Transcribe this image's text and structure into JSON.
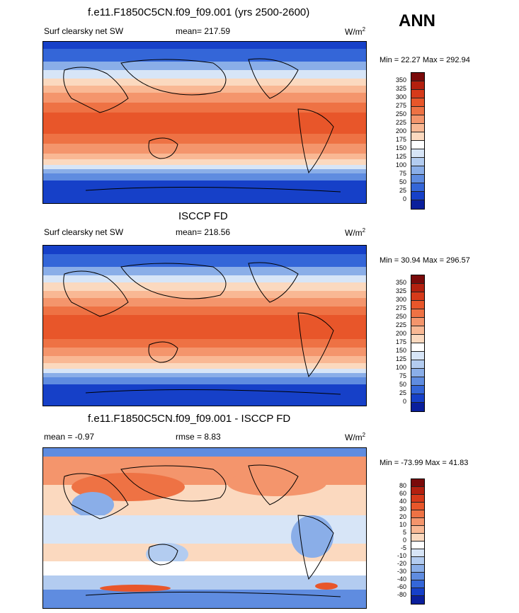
{
  "season": "ANN",
  "panels": [
    {
      "title": "f.e11.F1850C5CN.f09_f09.001 (yrs 2500-2600)",
      "variable": "Surf clearsky net SW",
      "stat": "mean= 217.59",
      "units": "W/m",
      "units_sup": "2",
      "minmax": "Min =  22.27 Max = 292.94",
      "levels": [
        "350",
        "325",
        "300",
        "275",
        "250",
        "225",
        "200",
        "175",
        "150",
        "125",
        "100",
        "75",
        "50",
        "25",
        "0"
      ],
      "colors": [
        "#7a0a0a",
        "#b3200f",
        "#d63a1a",
        "#e8562a",
        "#ee7244",
        "#f4956c",
        "#f9b894",
        "#fbd9bf",
        "#ffffff",
        "#d7e5f7",
        "#b3ccf0",
        "#8aaee8",
        "#5f8ce0",
        "#3466d8",
        "#1640c8",
        "#0a1f9c"
      ]
    },
    {
      "title": "ISCCP FD",
      "variable": "Surf clearsky net SW",
      "stat": "mean= 218.56",
      "units": "W/m",
      "units_sup": "2",
      "minmax": "Min =  30.94 Max = 296.57",
      "levels": [
        "350",
        "325",
        "300",
        "275",
        "250",
        "225",
        "200",
        "175",
        "150",
        "125",
        "100",
        "75",
        "50",
        "25",
        "0"
      ],
      "colors": [
        "#7a0a0a",
        "#b3200f",
        "#d63a1a",
        "#e8562a",
        "#ee7244",
        "#f4956c",
        "#f9b894",
        "#fbd9bf",
        "#ffffff",
        "#d7e5f7",
        "#b3ccf0",
        "#8aaee8",
        "#5f8ce0",
        "#3466d8",
        "#1640c8",
        "#0a1f9c"
      ]
    },
    {
      "title": "f.e11.F1850C5CN.f09_f09.001 - ISCCP FD",
      "variable": "mean =  -0.97",
      "stat": "rmse =   8.83",
      "units": "W/m",
      "units_sup": "2",
      "minmax": "Min = -73.99 Max =  41.83",
      "levels": [
        "80",
        "60",
        "40",
        "30",
        "20",
        "10",
        "5",
        "0",
        "-5",
        "-10",
        "-20",
        "-30",
        "-40",
        "-60",
        "-80"
      ],
      "colors": [
        "#7a0a0a",
        "#b3200f",
        "#d63a1a",
        "#e8562a",
        "#ee7244",
        "#f4956c",
        "#f9b894",
        "#fbd9bf",
        "#ffffff",
        "#d7e5f7",
        "#b3ccf0",
        "#8aaee8",
        "#5f8ce0",
        "#3466d8",
        "#1640c8",
        "#0a1f9c"
      ]
    }
  ]
}
